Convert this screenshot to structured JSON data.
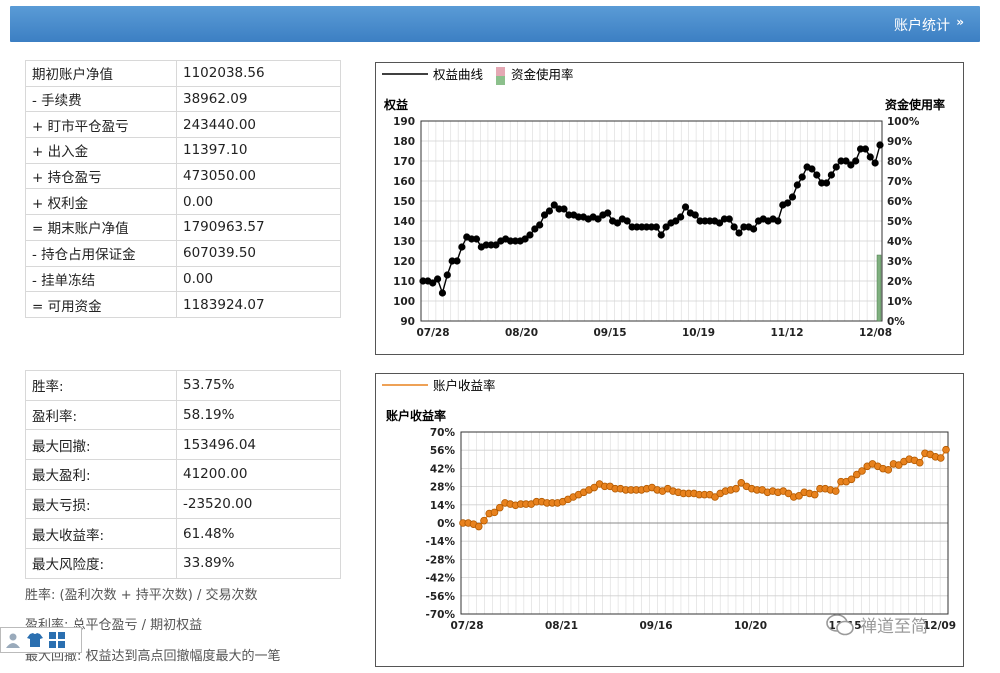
{
  "header": {
    "title": "账户统计",
    "collapse_icon": "chevron-double-up-icon"
  },
  "account_table": [
    {
      "label": "期初账户净值",
      "value": "1102038.56"
    },
    {
      "label": "- 手续费",
      "value": "38962.09"
    },
    {
      "label": "+ 盯市平仓盈亏",
      "value": "243440.00"
    },
    {
      "label": "+ 出入金",
      "value": "11397.10"
    },
    {
      "label": "+ 持仓盈亏",
      "value": "473050.00"
    },
    {
      "label": "+ 权利金",
      "value": "0.00"
    },
    {
      "label": "= 期末账户净值",
      "value": "1790963.57"
    },
    {
      "label": "- 持仓占用保证金",
      "value": "607039.50"
    },
    {
      "label": "- 挂单冻结",
      "value": "0.00"
    },
    {
      "label": "= 可用资金",
      "value": "1183924.07"
    }
  ],
  "performance_table": [
    {
      "label": "胜率:",
      "value": "53.75%"
    },
    {
      "label": "盈利率:",
      "value": "58.19%"
    },
    {
      "label": "最大回撤:",
      "value": "153496.04"
    },
    {
      "label": "最大盈利:",
      "value": "41200.00"
    },
    {
      "label": "最大亏损:",
      "value": "-23520.00"
    },
    {
      "label": "最大收益率:",
      "value": "61.48%"
    },
    {
      "label": "最大风险度:",
      "value": "33.89%"
    }
  ],
  "notes": [
    "胜率: (盈利次数 + 持平次数) / 交易次数",
    "盈利率: 总平仓盈亏 / 期初权益",
    "最大回撤: 权益达到高点回撤幅度最大的一笔"
  ],
  "watermark": "禅道至简",
  "colors": {
    "header": "#3c7fc3",
    "equity_line": "#000000",
    "return_line": "#e8821e",
    "return_marker": "#e8821e",
    "margin_bar": "#7fb07f"
  },
  "chart_data": [
    {
      "type": "line",
      "legend": [
        "权益曲线",
        "资金使用率"
      ],
      "ylabel": "权益",
      "y2label": "资金使用率",
      "ylim": [
        90,
        190
      ],
      "yticks": [
        "190",
        "180",
        "170",
        "160",
        "150",
        "140",
        "130",
        "120",
        "110",
        "100",
        "90"
      ],
      "y2ticks": [
        "100%",
        "90%",
        "80%",
        "70%",
        "60%",
        "50%",
        "40%",
        "30%",
        "20%",
        "10%",
        "0%"
      ],
      "xticks": [
        "07/28",
        "08/20",
        "09/15",
        "10/19",
        "11/12",
        "12/08"
      ],
      "series": [
        {
          "name": "权益曲线",
          "values": [
            110,
            110,
            109,
            111,
            104,
            113,
            120,
            120,
            127,
            132,
            131,
            131,
            127,
            128,
            128,
            128,
            130,
            131,
            130,
            130,
            130,
            131,
            133,
            136,
            138,
            143,
            145,
            148,
            146,
            146,
            143,
            143,
            142,
            142,
            141,
            142,
            141,
            143,
            144,
            140,
            139,
            141,
            140,
            137,
            137,
            137,
            137,
            137,
            137,
            133,
            137,
            139,
            140,
            142,
            147,
            144,
            143,
            140,
            140,
            140,
            140,
            139,
            141,
            141,
            137,
            134,
            137,
            137,
            136,
            140,
            141,
            140,
            141,
            140,
            148,
            149,
            152,
            158,
            162,
            167,
            166,
            163,
            159,
            159,
            163,
            167,
            170,
            170,
            168,
            170,
            176,
            176,
            172,
            169,
            178
          ]
        },
        {
          "name": "资金使用率",
          "values": [
            0,
            0,
            0,
            0,
            0,
            0,
            0,
            0,
            0,
            0,
            0,
            0,
            0,
            0,
            0,
            0,
            0,
            0,
            0,
            0,
            0,
            0,
            0,
            0,
            0,
            0,
            0,
            0,
            0,
            0,
            0,
            0,
            0,
            0,
            0,
            0,
            0,
            0,
            0,
            0,
            0,
            0,
            0,
            0,
            0,
            0,
            0,
            0,
            0,
            0,
            0,
            0,
            0,
            0,
            0,
            0,
            0,
            0,
            0,
            0,
            0,
            0,
            0,
            0,
            0,
            0,
            0,
            0,
            0,
            0,
            0,
            0,
            0,
            0,
            0,
            0,
            0,
            0,
            0,
            0,
            0,
            0,
            0,
            0,
            0,
            0,
            0,
            0,
            0,
            0,
            0,
            0,
            0,
            0,
            33
          ]
        }
      ]
    },
    {
      "type": "line",
      "legend": [
        "账户收益率"
      ],
      "ylabel": "账户收益率",
      "ylim": [
        -77,
        77
      ],
      "yticks": [
        "70%",
        "56%",
        "42%",
        "28%",
        "14%",
        "0%",
        "-14%",
        "-28%",
        "-42%",
        "-56%",
        "-70%"
      ],
      "xticks": [
        "07/28",
        "08/21",
        "09/16",
        "10/20",
        "11/15",
        "12/09"
      ],
      "series": [
        {
          "name": "账户收益率",
          "values": [
            0,
            0,
            -1,
            -3,
            2,
            8,
            9,
            13,
            17,
            16,
            15,
            16,
            16,
            16,
            18,
            18,
            17,
            17,
            17,
            18,
            20,
            22,
            24,
            26,
            28,
            30,
            33,
            31,
            31,
            29,
            29,
            28,
            28,
            28,
            28,
            29,
            30,
            28,
            27,
            29,
            27,
            26,
            25,
            25,
            25,
            24,
            24,
            24,
            22,
            25,
            27,
            28,
            29,
            34,
            31,
            29,
            28,
            28,
            26,
            27,
            26,
            27,
            25,
            22,
            23,
            26,
            25,
            24,
            29,
            29,
            28,
            27,
            35,
            35,
            37,
            41,
            44,
            48,
            50,
            48,
            46,
            45,
            50,
            49,
            52,
            54,
            53,
            51,
            59,
            58,
            56,
            55,
            62
          ]
        }
      ]
    }
  ]
}
